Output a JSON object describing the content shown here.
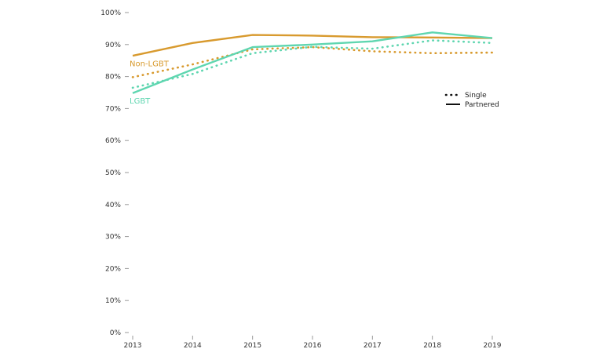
{
  "chart_data": {
    "type": "line",
    "x": [
      "2013",
      "2014",
      "2015",
      "2016",
      "2017",
      "2018",
      "2019"
    ],
    "ylim": [
      0,
      100
    ],
    "yticks": [
      "0%",
      "10%",
      "20%",
      "30%",
      "40%",
      "50%",
      "60%",
      "70%",
      "80%",
      "90%",
      "100%"
    ],
    "grid": false,
    "legend": {
      "position": "right",
      "entries": [
        {
          "label": "Single",
          "style": "dotted"
        },
        {
          "label": "Partnered",
          "style": "solid"
        }
      ]
    },
    "series": [
      {
        "name": "Non-LGBT",
        "color": "#D89A2E",
        "style": "solid",
        "label": "Non-LGBT",
        "values": [
          86.5,
          90.5,
          93.0,
          92.8,
          92.3,
          92.2,
          92.0
        ]
      },
      {
        "name": "Non-LGBT",
        "color": "#D89A2E",
        "style": "dotted",
        "values": [
          79.8,
          83.8,
          88.5,
          89.2,
          87.9,
          87.3,
          87.5
        ]
      },
      {
        "name": "LGBT",
        "color": "#5FD6B0",
        "style": "solid",
        "label": "LGBT",
        "values": [
          74.8,
          82.2,
          89.2,
          90.0,
          91.0,
          93.8,
          92.0
        ]
      },
      {
        "name": "LGBT",
        "color": "#5FD6B0",
        "style": "dotted",
        "values": [
          76.5,
          80.8,
          87.3,
          89.3,
          88.7,
          91.3,
          90.5
        ]
      }
    ]
  }
}
